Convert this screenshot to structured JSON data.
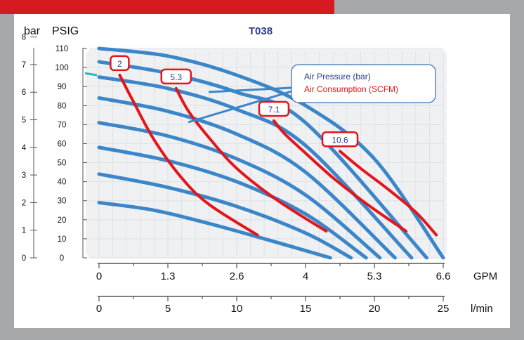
{
  "chart_data": {
    "type": "line",
    "title": "T038",
    "y_units": {
      "bar": "bar",
      "psig": "PSIG"
    },
    "y_bar_ticks": [
      "0",
      "1",
      "2",
      "3",
      "4",
      "5",
      "6",
      "7",
      "8"
    ],
    "y_psig_ticks": [
      "0",
      "10",
      "20",
      "30",
      "40",
      "50",
      "60",
      "70",
      "80",
      "90",
      "100",
      "110"
    ],
    "ylim_psig": [
      0,
      110
    ],
    "x_axes": [
      {
        "unit": "GPM",
        "ticks": [
          "0",
          "1.3",
          "2.6",
          "4",
          "5.3",
          "6.6"
        ],
        "xlim": [
          0,
          6.6
        ]
      },
      {
        "unit": "l/min",
        "ticks": [
          "0",
          "5",
          "10",
          "15",
          "20",
          "25"
        ],
        "xlim": [
          0,
          25
        ]
      }
    ],
    "legend": {
      "position": "top-right",
      "items": [
        {
          "label": "Air Pressure (bar)",
          "color": "#2b3a8f"
        },
        {
          "label": "Air Consumption (SCFM)",
          "color": "#e4141b"
        }
      ]
    },
    "pressure_curves_x_unit": "l/min",
    "pressure_curves_y_unit": "PSIG",
    "pressure_curves": [
      {
        "x": [
          0,
          4,
          8,
          12,
          16.8
        ],
        "y": [
          29,
          25,
          18,
          10,
          0
        ]
      },
      {
        "x": [
          0,
          5,
          10,
          15,
          18.3
        ],
        "y": [
          44,
          37,
          27,
          13,
          0
        ]
      },
      {
        "x": [
          0,
          5,
          10,
          15,
          19.4
        ],
        "y": [
          58,
          51,
          40,
          23,
          0
        ]
      },
      {
        "x": [
          0,
          5,
          10,
          15,
          20.4
        ],
        "y": [
          71,
          64,
          52,
          33,
          0
        ]
      },
      {
        "x": [
          0,
          5,
          10,
          15,
          21.5
        ],
        "y": [
          84,
          77,
          65,
          45,
          0
        ]
      },
      {
        "x": [
          0,
          5,
          10,
          15,
          22.7
        ],
        "y": [
          95,
          89,
          78,
          59,
          0
        ]
      },
      {
        "x": [
          0,
          5,
          10,
          15,
          23.8
        ],
        "y": [
          103,
          97,
          87,
          71,
          0
        ]
      },
      {
        "x": [
          0,
          5,
          10,
          15,
          20,
          25
        ],
        "y": [
          110,
          106,
          96,
          80,
          52,
          0
        ]
      }
    ],
    "consumption_curves": [
      {
        "name": "2",
        "x": [
          1.5,
          2.5,
          4,
          6,
          8,
          11.5
        ],
        "y": [
          96,
          82,
          62,
          42,
          28,
          12
        ]
      },
      {
        "name": "5.3",
        "x": [
          5.6,
          6.5,
          8,
          10,
          13,
          16.5
        ],
        "y": [
          89,
          77,
          63,
          47,
          30,
          14
        ]
      },
      {
        "name": "7.1",
        "x": [
          12.7,
          13.5,
          15,
          17,
          19.5,
          22.3
        ],
        "y": [
          72,
          65,
          55,
          42,
          28,
          14
        ]
      },
      {
        "name": "10.6",
        "x": [
          17.5,
          19,
          21,
          23,
          24.5
        ],
        "y": [
          56,
          47,
          36,
          24,
          12
        ]
      }
    ],
    "grid": true
  }
}
